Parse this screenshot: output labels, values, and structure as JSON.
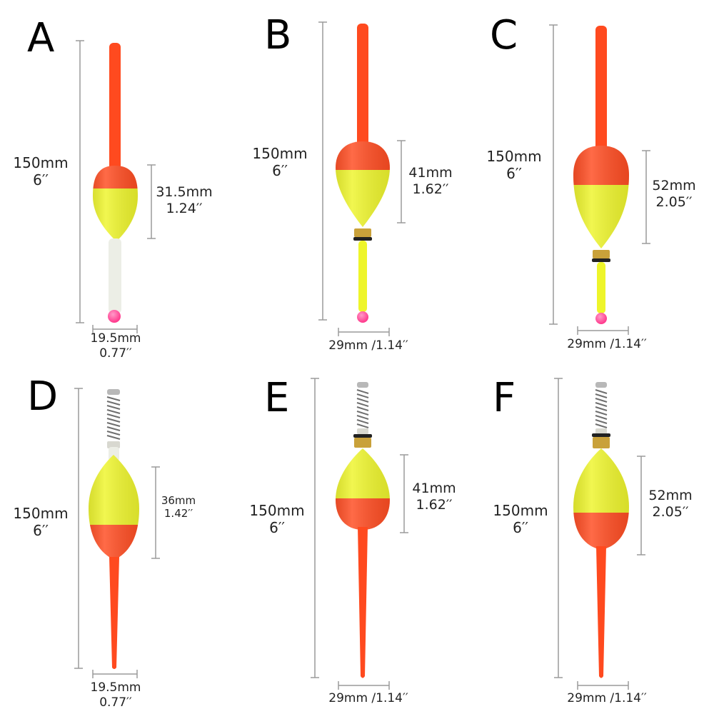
{
  "colors": {
    "red": "#ff4a1f",
    "yellow": "#eef52a",
    "white_stem": "#eef0ea",
    "bead": "#ff3a8c",
    "line": "#999999",
    "brass": "#c9a13a"
  },
  "floats": [
    {
      "letter": "A",
      "height_mm": "150mm",
      "height_in": "6′′",
      "body_mm": "31.5mm",
      "body_in": "1.24′′",
      "width_mm": "19.5mm",
      "width_in": "0.77′′",
      "width_line": ""
    },
    {
      "letter": "B",
      "height_mm": "150mm",
      "height_in": "6′′",
      "body_mm": "41mm",
      "body_in": "1.62′′",
      "width_line": "29mm /1.14′′"
    },
    {
      "letter": "C",
      "height_mm": "150mm",
      "height_in": "6′′",
      "body_mm": "52mm",
      "body_in": "2.05′′",
      "width_line": "29mm /1.14′′"
    },
    {
      "letter": "D",
      "height_mm": "150mm",
      "height_in": "6′′",
      "body_mm": "36mm",
      "body_in": "1.42′′",
      "width_mm": "19.5mm",
      "width_in": "0.77′′",
      "width_line": ""
    },
    {
      "letter": "E",
      "height_mm": "150mm",
      "height_in": "6′′",
      "body_mm": "41mm",
      "body_in": "1.62′′",
      "width_line": "29mm /1.14′′"
    },
    {
      "letter": "F",
      "height_mm": "150mm",
      "height_in": "6′′",
      "body_mm": "52mm",
      "body_in": "2.05′′",
      "width_line": "29mm /1.14′′"
    }
  ]
}
